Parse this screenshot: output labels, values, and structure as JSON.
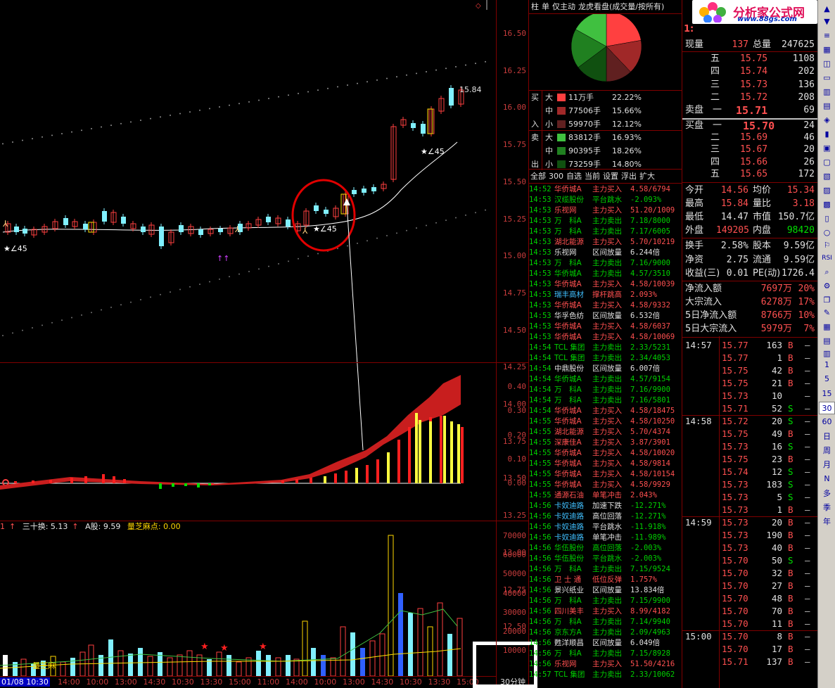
{
  "main_chart": {
    "price_ticks": [
      "16.50",
      "16.25",
      "16.00",
      "15.75",
      "15.50",
      "15.25",
      "15.00",
      "14.75",
      "14.50",
      "14.25",
      "14.00",
      "13.75",
      "13.50",
      "13.25",
      "13.00",
      "12.75",
      "12.50"
    ],
    "last_price_label": "15.84",
    "angle_labels": [
      "∠45",
      "∠45",
      "∠45"
    ],
    "arrow_label": "↑↑"
  },
  "macd": {
    "ticks": [
      "0.40",
      "0.30",
      "0.20",
      "0.10",
      "0.00"
    ]
  },
  "volume_panel": {
    "indicator_prefix": "1",
    "indicator_1": "三十换: 5.13",
    "indicator_2": "A股: 9.59",
    "indicator_3": "量芝麻点: 0.00",
    "ticks": [
      "70000",
      "60000",
      "50000",
      "40000",
      "30000",
      "20000",
      "10000"
    ],
    "overlay_label": "量芝麻"
  },
  "x_axis": {
    "selected": "01/08 10:30",
    "labels": [
      "14:00",
      "10:00",
      "13:00",
      "14:30",
      "10:30",
      "13:30",
      "15:00",
      "11:00",
      "14:00",
      "10:00",
      "13:00",
      "14:30",
      "10:30",
      "13:30",
      "15:00"
    ]
  },
  "period": "30分钟",
  "middle": {
    "tabs": [
      "柱",
      "单",
      "仅主动",
      "龙虎看盘(成交量/按所有)"
    ],
    "flow": [
      {
        "side": "买",
        "size": "大",
        "color": "#ff4040",
        "amount": "11万手",
        "pct": "22.22%"
      },
      {
        "side": "",
        "size": "中",
        "color": "#a02828",
        "amount": "77506手",
        "pct": "15.66%"
      },
      {
        "side": "入",
        "size": "小",
        "color": "#602020",
        "amount": "59970手",
        "pct": "12.12%"
      },
      {
        "side": "卖",
        "size": "大",
        "color": "#40c040",
        "amount": "83812手",
        "pct": "16.93%"
      },
      {
        "side": "",
        "size": "中",
        "color": "#208020",
        "amount": "90395手",
        "pct": "18.26%"
      },
      {
        "side": "出",
        "size": "小",
        "color": "#105010",
        "amount": "73259手",
        "pct": "14.80%"
      }
    ],
    "pie": [
      {
        "value": 22.22,
        "color": "#ff4040"
      },
      {
        "value": 15.66,
        "color": "#a02828"
      },
      {
        "value": 12.12,
        "color": "#602020"
      },
      {
        "value": 14.8,
        "color": "#105010"
      },
      {
        "value": 18.26,
        "color": "#208020"
      },
      {
        "value": 16.93,
        "color": "#40c040"
      }
    ],
    "alert_tabs": [
      "全部",
      "300",
      "自选",
      "当前",
      "设置",
      "浮出",
      "扩大"
    ],
    "alerts": [
      {
        "t": "14:52",
        "n": "华侨城A",
        "nc": "#ff5050",
        "e": "主力买入",
        "ec": "#ff5050",
        "v": "4.58/6794",
        "vc": "#ff5050"
      },
      {
        "t": "14:53",
        "n": "汉缆股份",
        "nc": "#00d000",
        "e": "平台跳水",
        "ec": "#00d000",
        "v": "-2.093%",
        "vc": "#00d000"
      },
      {
        "t": "14:53",
        "n": "乐视网",
        "nc": "#ff5050",
        "e": "主力买入",
        "ec": "#ff5050",
        "v": "51.20/1009",
        "vc": "#ff5050"
      },
      {
        "t": "14:53",
        "n": "万　科A",
        "nc": "#00d000",
        "e": "主力卖出",
        "ec": "#00d000",
        "v": "7.18/8000",
        "vc": "#00d000"
      },
      {
        "t": "14:53",
        "n": "万　科A",
        "nc": "#00d000",
        "e": "主力卖出",
        "ec": "#00d000",
        "v": "7.17/6005",
        "vc": "#00d000"
      },
      {
        "t": "14:53",
        "n": "湖北能源",
        "nc": "#ff5050",
        "e": "主力买入",
        "ec": "#ff5050",
        "v": "5.70/10219",
        "vc": "#ff5050"
      },
      {
        "t": "14:53",
        "n": "乐视网",
        "nc": "#e0e0e0",
        "e": "区间放量",
        "ec": "#e0e0e0",
        "v": "6.244倍",
        "vc": "#e0e0e0"
      },
      {
        "t": "14:53",
        "n": "万　科A",
        "nc": "#00d000",
        "e": "主力卖出",
        "ec": "#00d000",
        "v": "7.16/9000",
        "vc": "#00d000"
      },
      {
        "t": "14:53",
        "n": "华侨城A",
        "nc": "#00d000",
        "e": "主力卖出",
        "ec": "#00d000",
        "v": "4.57/3510",
        "vc": "#00d000"
      },
      {
        "t": "14:53",
        "n": "华侨城A",
        "nc": "#ff5050",
        "e": "主力买入",
        "ec": "#ff5050",
        "v": "4.58/10039",
        "vc": "#ff5050"
      },
      {
        "t": "14:53",
        "n": "瑞丰高材",
        "nc": "#40c0ff",
        "e": "撑杆跳高",
        "ec": "#ff5050",
        "v": "2.093%",
        "vc": "#ff5050"
      },
      {
        "t": "14:53",
        "n": "华侨城A",
        "nc": "#ff5050",
        "e": "主力买入",
        "ec": "#ff5050",
        "v": "4.58/9332",
        "vc": "#ff5050"
      },
      {
        "t": "14:53",
        "n": "华孚色纺",
        "nc": "#e0e0e0",
        "e": "区间放量",
        "ec": "#e0e0e0",
        "v": "6.532倍",
        "vc": "#e0e0e0"
      },
      {
        "t": "14:53",
        "n": "华侨城A",
        "nc": "#ff5050",
        "e": "主力买入",
        "ec": "#ff5050",
        "v": "4.58/6037",
        "vc": "#ff5050"
      },
      {
        "t": "14:53",
        "n": "华侨城A",
        "nc": "#ff5050",
        "e": "主力买入",
        "ec": "#ff5050",
        "v": "4.58/10069",
        "vc": "#ff5050"
      },
      {
        "t": "14:54",
        "n": "TCL 集团",
        "nc": "#00d000",
        "e": "主力卖出",
        "ec": "#00d000",
        "v": "2.33/5231",
        "vc": "#00d000"
      },
      {
        "t": "14:54",
        "n": "TCL 集团",
        "nc": "#00d000",
        "e": "主力卖出",
        "ec": "#00d000",
        "v": "2.34/4053",
        "vc": "#00d000"
      },
      {
        "t": "14:54",
        "n": "中鼎股份",
        "nc": "#e0e0e0",
        "e": "区间放量",
        "ec": "#e0e0e0",
        "v": "6.007倍",
        "vc": "#e0e0e0"
      },
      {
        "t": "14:54",
        "n": "华侨城A",
        "nc": "#00d000",
        "e": "主力卖出",
        "ec": "#00d000",
        "v": "4.57/9154",
        "vc": "#00d000"
      },
      {
        "t": "14:54",
        "n": "万　科A",
        "nc": "#00d000",
        "e": "主力卖出",
        "ec": "#00d000",
        "v": "7.16/9900",
        "vc": "#00d000"
      },
      {
        "t": "14:54",
        "n": "万　科A",
        "nc": "#00d000",
        "e": "主力卖出",
        "ec": "#00d000",
        "v": "7.16/5801",
        "vc": "#00d000"
      },
      {
        "t": "14:54",
        "n": "华侨城A",
        "nc": "#ff5050",
        "e": "主力买入",
        "ec": "#ff5050",
        "v": "4.58/18475",
        "vc": "#ff5050"
      },
      {
        "t": "14:55",
        "n": "华侨城A",
        "nc": "#ff5050",
        "e": "主力买入",
        "ec": "#ff5050",
        "v": "4.58/10250",
        "vc": "#ff5050"
      },
      {
        "t": "14:55",
        "n": "湖北能源",
        "nc": "#ff5050",
        "e": "主力买入",
        "ec": "#ff5050",
        "v": "5.70/4374",
        "vc": "#ff5050"
      },
      {
        "t": "14:55",
        "n": "深康佳A",
        "nc": "#ff5050",
        "e": "主力买入",
        "ec": "#ff5050",
        "v": "3.87/3901",
        "vc": "#ff5050"
      },
      {
        "t": "14:55",
        "n": "华侨城A",
        "nc": "#ff5050",
        "e": "主力买入",
        "ec": "#ff5050",
        "v": "4.58/10020",
        "vc": "#ff5050"
      },
      {
        "t": "14:55",
        "n": "华侨城A",
        "nc": "#ff5050",
        "e": "主力买入",
        "ec": "#ff5050",
        "v": "4.58/9814",
        "vc": "#ff5050"
      },
      {
        "t": "14:55",
        "n": "华侨城A",
        "nc": "#ff5050",
        "e": "主力买入",
        "ec": "#ff5050",
        "v": "4.58/10154",
        "vc": "#ff5050"
      },
      {
        "t": "14:55",
        "n": "华侨城A",
        "nc": "#ff5050",
        "e": "主力买入",
        "ec": "#ff5050",
        "v": "4.58/9929",
        "vc": "#ff5050"
      },
      {
        "t": "14:55",
        "n": "通源石油",
        "nc": "#ff5050",
        "e": "单笔冲击",
        "ec": "#ff5050",
        "v": "2.043%",
        "vc": "#ff5050"
      },
      {
        "t": "14:56",
        "n": "卡奴迪路",
        "nc": "#40c0ff",
        "e": "加速下跌",
        "ec": "#e0e0e0",
        "v": "-12.271%",
        "vc": "#00d000"
      },
      {
        "t": "14:56",
        "n": "卡奴迪路",
        "nc": "#40c0ff",
        "e": "高位回落",
        "ec": "#e0e0e0",
        "v": "-12.271%",
        "vc": "#00d000"
      },
      {
        "t": "14:56",
        "n": "卡奴迪路",
        "nc": "#40c0ff",
        "e": "平台跳水",
        "ec": "#e0e0e0",
        "v": "-11.918%",
        "vc": "#00d000"
      },
      {
        "t": "14:56",
        "n": "卡奴迪路",
        "nc": "#40c0ff",
        "e": "单笔冲击",
        "ec": "#e0e0e0",
        "v": "-11.989%",
        "vc": "#00d000"
      },
      {
        "t": "14:56",
        "n": "华伍股份",
        "nc": "#00d000",
        "e": "高位回落",
        "ec": "#00d000",
        "v": "-2.003%",
        "vc": "#00d000"
      },
      {
        "t": "14:56",
        "n": "华伍股份",
        "nc": "#00d000",
        "e": "平台跳水",
        "ec": "#00d000",
        "v": "-2.003%",
        "vc": "#00d000"
      },
      {
        "t": "14:56",
        "n": "万　科A",
        "nc": "#00d000",
        "e": "主力卖出",
        "ec": "#00d000",
        "v": "7.15/9524",
        "vc": "#00d000"
      },
      {
        "t": "14:56",
        "n": "卫 士 通",
        "nc": "#ff5050",
        "e": "低位反弹",
        "ec": "#ff5050",
        "v": "1.757%",
        "vc": "#ff5050"
      },
      {
        "t": "14:56",
        "n": "景兴纸业",
        "nc": "#e0e0e0",
        "e": "区间放量",
        "ec": "#e0e0e0",
        "v": "13.834倍",
        "vc": "#e0e0e0"
      },
      {
        "t": "14:56",
        "n": "万　科A",
        "nc": "#00d000",
        "e": "主力卖出",
        "ec": "#00d000",
        "v": "7.15/9900",
        "vc": "#00d000"
      },
      {
        "t": "14:56",
        "n": "四川美丰",
        "nc": "#ff5050",
        "e": "主力买入",
        "ec": "#ff5050",
        "v": "8.99/4182",
        "vc": "#ff5050"
      },
      {
        "t": "14:56",
        "n": "万　科A",
        "nc": "#00d000",
        "e": "主力卖出",
        "ec": "#00d000",
        "v": "7.14/9940",
        "vc": "#00d000"
      },
      {
        "t": "14:56",
        "n": "京东方A",
        "nc": "#00d000",
        "e": "主力卖出",
        "ec": "#00d000",
        "v": "2.09/4963",
        "vc": "#00d000"
      },
      {
        "t": "14:56",
        "n": "甦洋顺昌",
        "nc": "#e0e0e0",
        "e": "区间放量",
        "ec": "#e0e0e0",
        "v": "6.049倍",
        "vc": "#e0e0e0"
      },
      {
        "t": "14:56",
        "n": "万　科A",
        "nc": "#00d000",
        "e": "主力卖出",
        "ec": "#00d000",
        "v": "7.15/8928",
        "vc": "#00d000"
      },
      {
        "t": "14:56",
        "n": "乐视网",
        "nc": "#ff5050",
        "e": "主力买入",
        "ec": "#ff5050",
        "v": "51.50/4216",
        "vc": "#ff5050"
      },
      {
        "t": "14:57",
        "n": "TCL 集团",
        "nc": "#00d000",
        "e": "主力卖出",
        "ec": "#00d000",
        "v": "2.33/10062",
        "vc": "#00d000"
      }
    ]
  },
  "right": {
    "logo_text": "分析家公式网",
    "logo_url": "www.88gs.com",
    "symbol_fragment": "1:",
    "top": [
      {
        "k1": "现量",
        "v1": "137",
        "k2": "总量",
        "v2": "247625"
      }
    ],
    "asks": [
      {
        "l": "五",
        "p": "15.75",
        "q": "1108"
      },
      {
        "l": "四",
        "p": "15.74",
        "q": "202"
      },
      {
        "l": "三",
        "p": "15.73",
        "q": "136"
      },
      {
        "l": "二",
        "p": "15.72",
        "q": "208"
      },
      {
        "l": "卖盘　一",
        "p": "15.71",
        "q": "69"
      }
    ],
    "bids": [
      {
        "l": "买盘　一",
        "p": "15.70",
        "q": "24"
      },
      {
        "l": "二",
        "p": "15.69",
        "q": "46"
      },
      {
        "l": "三",
        "p": "15.67",
        "q": "20"
      },
      {
        "l": "四",
        "p": "15.66",
        "q": "26"
      },
      {
        "l": "五",
        "p": "15.65",
        "q": "172"
      }
    ],
    "stats": [
      {
        "k1": "今开",
        "v1": "14.56",
        "c1": "#ff5050",
        "k2": "均价",
        "v2": "15.34",
        "c2": "#ff5050"
      },
      {
        "k1": "最高",
        "v1": "15.84",
        "c1": "#ff5050",
        "k2": "量比",
        "v2": "3.18",
        "c2": "#ff5050"
      },
      {
        "k1": "最低",
        "v1": "14.47",
        "c1": "#e0e0e0",
        "k2": "市值",
        "v2": "150.7亿",
        "c2": "#e0e0e0"
      },
      {
        "k1": "外盘",
        "v1": "149205",
        "c1": "#ff5050",
        "k2": "内盘",
        "v2": "98420",
        "c2": "#00e000"
      },
      {
        "k1": "换手",
        "v1": "2.58%",
        "c1": "#e0e0e0",
        "k2": "股本",
        "v2": "9.59亿",
        "c2": "#e0e0e0"
      },
      {
        "k1": "净资",
        "v1": "2.75",
        "c1": "#e0e0e0",
        "k2": "流通",
        "v2": "9.59亿",
        "c2": "#e0e0e0"
      },
      {
        "k1": "收益(三)",
        "v1": "0.01",
        "c1": "#e0e0e0",
        "k2": "PE(动)",
        "v2": "1726.4",
        "c2": "#e0e0e0"
      }
    ],
    "flows": [
      {
        "k": "净流入额",
        "v": "7697万",
        "p": "20%"
      },
      {
        "k": "大宗流入",
        "v": "6278万",
        "p": "17%"
      },
      {
        "k": "5日净流入额",
        "v": "8766万",
        "p": "10%"
      },
      {
        "k": "5日大宗流入",
        "v": "5979万",
        "p": "7%"
      }
    ],
    "ticks": [
      {
        "tm": "14:57",
        "pr": "15.77",
        "vl": "163",
        "bs": "B"
      },
      {
        "tm": "",
        "pr": "15.77",
        "vl": "1",
        "bs": "B"
      },
      {
        "tm": "",
        "pr": "15.75",
        "vl": "42",
        "bs": "B"
      },
      {
        "tm": "",
        "pr": "15.75",
        "vl": "21",
        "bs": "B"
      },
      {
        "tm": "",
        "pr": "15.73",
        "vl": "10",
        "bs": ""
      },
      {
        "tm": "",
        "pr": "15.71",
        "vl": "52",
        "bs": "S"
      },
      {
        "tm": "14:58",
        "pr": "15.72",
        "vl": "20",
        "bs": "S"
      },
      {
        "tm": "",
        "pr": "15.75",
        "vl": "49",
        "bs": "B"
      },
      {
        "tm": "",
        "pr": "15.73",
        "vl": "16",
        "bs": "S"
      },
      {
        "tm": "",
        "pr": "15.75",
        "vl": "23",
        "bs": "B"
      },
      {
        "tm": "",
        "pr": "15.74",
        "vl": "12",
        "bs": "S"
      },
      {
        "tm": "",
        "pr": "15.73",
        "vl": "183",
        "bs": "S"
      },
      {
        "tm": "",
        "pr": "15.73",
        "vl": "5",
        "bs": "S"
      },
      {
        "tm": "",
        "pr": "15.73",
        "vl": "1",
        "bs": "B"
      },
      {
        "tm": "14:59",
        "pr": "15.73",
        "vl": "20",
        "bs": "B"
      },
      {
        "tm": "",
        "pr": "15.73",
        "vl": "190",
        "bs": "B"
      },
      {
        "tm": "",
        "pr": "15.73",
        "vl": "40",
        "bs": "B"
      },
      {
        "tm": "",
        "pr": "15.70",
        "vl": "50",
        "bs": "S"
      },
      {
        "tm": "",
        "pr": "15.70",
        "vl": "32",
        "bs": "B"
      },
      {
        "tm": "",
        "pr": "15.70",
        "vl": "27",
        "bs": "B"
      },
      {
        "tm": "",
        "pr": "15.70",
        "vl": "48",
        "bs": "B"
      },
      {
        "tm": "",
        "pr": "15.70",
        "vl": "70",
        "bs": "B"
      },
      {
        "tm": "",
        "pr": "15.70",
        "vl": "11",
        "bs": "B"
      },
      {
        "tm": "15:00",
        "pr": "15.70",
        "vl": "8",
        "bs": "B"
      },
      {
        "tm": "",
        "pr": "15.70",
        "vl": "17",
        "bs": "B"
      },
      {
        "tm": "",
        "pr": "15.71",
        "vl": "137",
        "bs": "B"
      }
    ]
  },
  "toolbar": {
    "periods": [
      "1",
      "5",
      "15",
      "30",
      "60",
      "日",
      "周",
      "月",
      "N",
      "多",
      "季",
      "年"
    ],
    "rsi_label": "RSI"
  }
}
